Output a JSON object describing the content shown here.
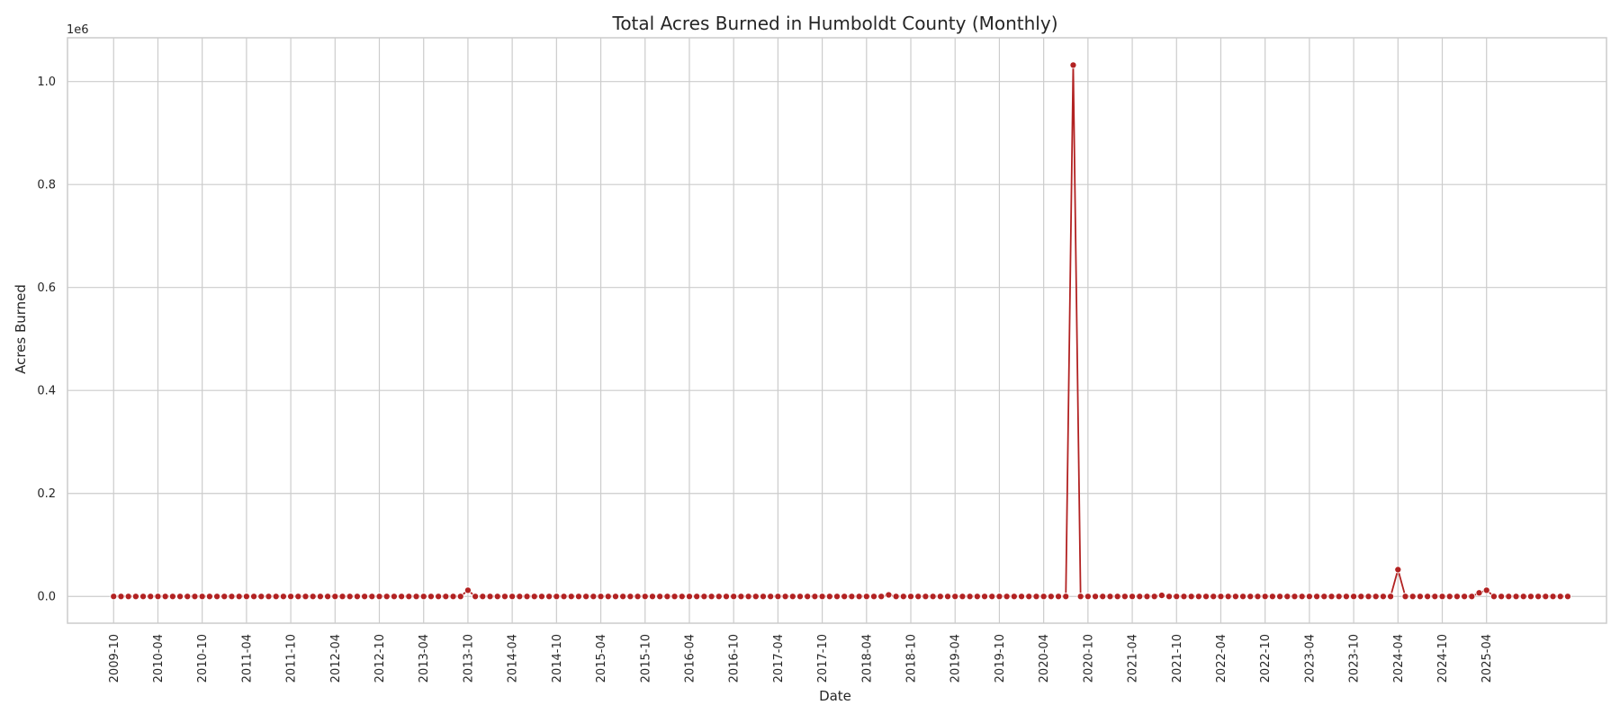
{
  "chart_data": {
    "type": "line",
    "title": "Total Acres Burned in Humboldt County (Monthly)",
    "xlabel": "Date",
    "ylabel": "Acres Burned",
    "y_offset_label": "1e6",
    "ylim": [
      -0.052,
      1.085
    ],
    "y_ticks": [
      "0.0",
      "0.2",
      "0.4",
      "0.6",
      "0.8",
      "1.0"
    ],
    "x_ticks": [
      "2009-10",
      "2010-04",
      "2010-10",
      "2011-04",
      "2011-10",
      "2012-04",
      "2012-10",
      "2013-04",
      "2013-10",
      "2014-04",
      "2014-10",
      "2015-04",
      "2015-10",
      "2016-04",
      "2016-10",
      "2017-04",
      "2017-10",
      "2018-04",
      "2018-10",
      "2019-04",
      "2019-10",
      "2020-04",
      "2020-10",
      "2021-04",
      "2021-10",
      "2022-04",
      "2022-10",
      "2023-04",
      "2023-10",
      "2024-04",
      "2024-10",
      "2025-04"
    ],
    "grid": true,
    "legend": "none",
    "color": "#b22222",
    "series": [
      {
        "start": "2009-10",
        "step": "1 month",
        "values_in_1e6_acres": [
          0.0,
          0.0,
          0.0,
          0.0,
          0.0,
          0.0,
          0.0,
          0.0,
          0.0,
          0.0,
          0.0,
          0.0,
          0.0,
          0.0,
          0.0,
          0.0,
          0.0,
          0.0,
          0.0,
          0.0,
          0.0,
          0.0,
          0.0,
          0.0,
          0.0,
          0.0,
          0.0,
          0.0,
          0.0,
          0.0,
          0.0,
          0.0,
          0.0,
          0.0,
          0.0,
          0.0,
          0.0,
          0.0,
          0.0,
          0.0,
          0.0,
          0.0,
          0.0,
          0.0,
          0.0,
          0.0,
          0.0,
          0.0,
          0.012,
          0.0,
          0.0,
          0.0,
          0.0,
          0.0,
          0.0,
          0.0,
          0.0,
          0.0,
          0.0,
          0.0,
          0.0,
          0.0,
          0.0,
          0.0,
          0.0,
          0.0,
          0.0,
          0.0,
          0.0,
          0.0,
          0.0,
          0.0,
          0.0,
          0.0,
          0.0,
          0.0,
          0.0,
          0.0,
          0.0,
          0.0,
          0.0,
          0.0,
          0.0,
          0.0,
          0.0,
          0.0,
          0.0,
          0.0,
          0.0,
          0.0,
          0.0,
          0.0,
          0.0,
          0.0,
          0.0,
          0.0,
          0.0,
          0.0,
          0.0,
          0.0,
          0.0,
          0.0,
          0.0,
          0.0,
          0.0,
          0.003,
          0.0,
          0.0,
          0.0,
          0.0,
          0.0,
          0.0,
          0.0,
          0.0,
          0.0,
          0.0,
          0.0,
          0.0,
          0.0,
          0.0,
          0.0,
          0.0,
          0.0,
          0.0,
          0.0,
          0.0,
          0.0,
          0.0,
          0.0,
          0.0,
          1.032,
          0.0,
          0.0,
          0.0,
          0.0,
          0.0,
          0.0,
          0.0,
          0.0,
          0.0,
          0.0,
          0.0,
          0.002,
          0.0,
          0.0,
          0.0,
          0.0,
          0.0,
          0.0,
          0.0,
          0.0,
          0.0,
          0.0,
          0.0,
          0.0,
          0.0,
          0.0,
          0.0,
          0.0,
          0.0,
          0.0,
          0.0,
          0.0,
          0.0,
          0.0,
          0.0,
          0.0,
          0.0,
          0.0,
          0.0,
          0.0,
          0.0,
          0.0,
          0.0,
          0.052,
          0.0,
          0.0,
          0.0,
          0.0,
          0.0,
          0.0,
          0.0,
          0.0,
          0.0,
          0.0,
          0.007,
          0.012,
          0.0,
          0.0,
          0.0,
          0.0,
          0.0,
          0.0,
          0.0,
          0.0,
          0.0,
          0.0,
          0.0
        ]
      }
    ]
  }
}
